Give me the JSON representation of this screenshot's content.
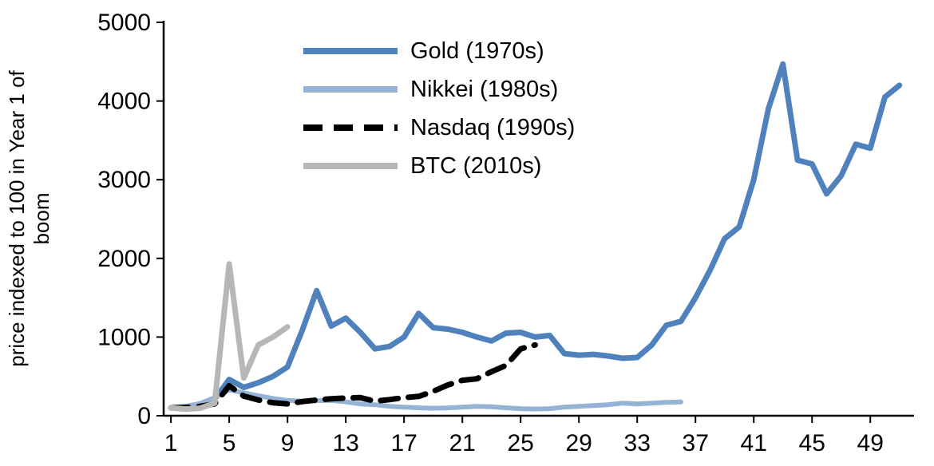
{
  "chart_data": {
    "type": "line",
    "title": "",
    "xlabel": "",
    "ylabel": "price indexed to 100 in Year 1 of boom",
    "ylabel_lines": [
      "price indexed to 100 in Year 1 of",
      "boom"
    ],
    "xlim": [
      0.5,
      52
    ],
    "ylim": [
      0,
      5000
    ],
    "xticks": [
      1,
      5,
      9,
      13,
      17,
      21,
      25,
      29,
      33,
      37,
      41,
      45,
      49
    ],
    "yticks": [
      0,
      1000,
      2000,
      3000,
      4000,
      5000
    ],
    "grid": false,
    "legend_position": "top-left-inside",
    "axis_color": "#000000",
    "series": [
      {
        "name": "Gold (1970s)",
        "color": "#4f81bd",
        "dash": "solid",
        "width": 7,
        "x_start": 1,
        "values": [
          100,
          115,
          135,
          210,
          460,
          360,
          420,
          500,
          620,
          1080,
          1590,
          1140,
          1240,
          1060,
          850,
          880,
          1000,
          1300,
          1120,
          1100,
          1060,
          1000,
          950,
          1050,
          1060,
          1000,
          1020,
          790,
          770,
          780,
          760,
          730,
          740,
          900,
          1150,
          1200,
          1500,
          1850,
          2250,
          2400,
          3000,
          3900,
          4470,
          3250,
          3200,
          2820,
          3050,
          3450,
          3400,
          4050,
          4200
        ]
      },
      {
        "name": "Nikkei (1980s)",
        "color": "#95b3d7",
        "dash": "solid",
        "width": 6,
        "x_start": 1,
        "values": [
          100,
          120,
          155,
          230,
          330,
          290,
          255,
          220,
          195,
          185,
          190,
          195,
          175,
          150,
          140,
          120,
          110,
          100,
          95,
          100,
          110,
          120,
          115,
          100,
          90,
          85,
          90,
          110,
          120,
          130,
          140,
          160,
          150,
          160,
          170,
          175
        ]
      },
      {
        "name": "Nasdaq (1990s)",
        "color": "#000000",
        "dash": "dashed",
        "width": 7,
        "x_start": 1,
        "values": [
          100,
          105,
          120,
          150,
          380,
          250,
          200,
          165,
          150,
          180,
          200,
          215,
          225,
          230,
          185,
          205,
          230,
          245,
          310,
          390,
          450,
          470,
          560,
          640,
          850,
          900
        ]
      },
      {
        "name": "BTC (2010s)",
        "color": "#b7b7b7",
        "dash": "solid",
        "width": 7,
        "x_start": 1,
        "values": [
          100,
          85,
          95,
          160,
          1930,
          480,
          900,
          1000,
          1130
        ]
      }
    ]
  }
}
